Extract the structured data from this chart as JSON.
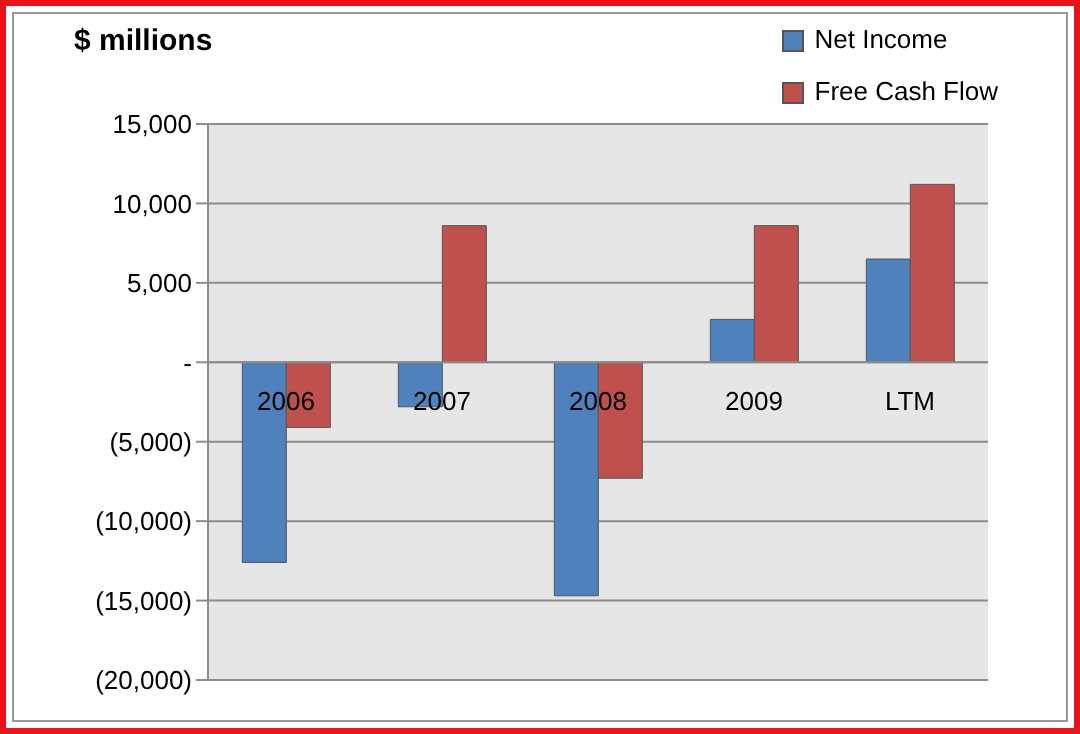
{
  "chart_data": {
    "type": "bar",
    "title": "$ millions",
    "categories": [
      "2006",
      "2007",
      "2008",
      "2009",
      "LTM"
    ],
    "series": [
      {
        "name": "Net Income",
        "color": "#4f81bd",
        "values": [
          -12600,
          -2800,
          -14700,
          2700,
          6500
        ]
      },
      {
        "name": "Free Cash Flow",
        "color": "#c0504d",
        "values": [
          -4100,
          8600,
          -7300,
          8600,
          11200
        ]
      }
    ],
    "ylim": [
      -20000,
      15000
    ],
    "yticks": [
      {
        "value": -20000,
        "label": "(20,000)"
      },
      {
        "value": -15000,
        "label": "(15,000)"
      },
      {
        "value": -10000,
        "label": "(10,000)"
      },
      {
        "value": -5000,
        "label": "(5,000)"
      },
      {
        "value": 0,
        "label": "-"
      },
      {
        "value": 5000,
        "label": "5,000"
      },
      {
        "value": 10000,
        "label": "10,000"
      },
      {
        "value": 15000,
        "label": "15,000"
      }
    ],
    "grid": "y",
    "legend": "top right"
  }
}
